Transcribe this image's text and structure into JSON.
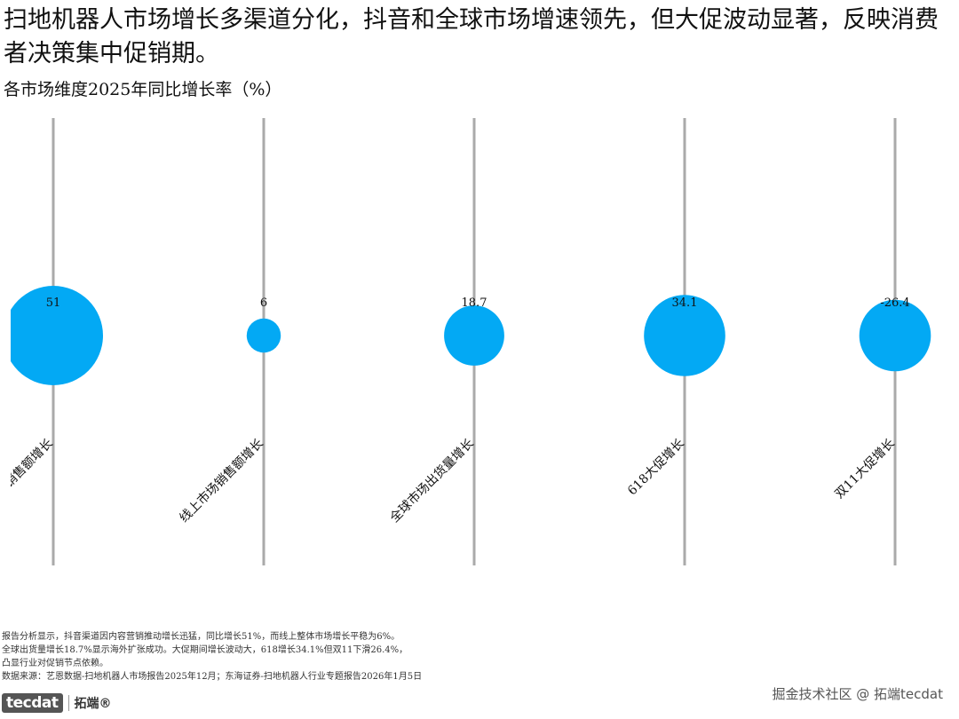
{
  "headline": "扫地机器人市场增长多渠道分化，抖音和全球市场增速领先，但大促波动显著，反映消费者决策集中促销期。",
  "chart_data": {
    "type": "scatter",
    "title": "各市场维度2025年同比增长率（%）",
    "categories": [
      "抖音销售额增长",
      "线上市场销售额增长",
      "全球市场出货量增长",
      "618大促增长",
      "双11大促增长"
    ],
    "values": [
      51,
      6,
      18.7,
      34.1,
      -26.4
    ],
    "value_labels": [
      "51",
      "6",
      "18.7",
      "34.1",
      "-26.4"
    ],
    "encoding": "bubble size = absolute value",
    "bubble_color": "#03A9F4",
    "stem_color": "#AAAAAA",
    "grid": false,
    "legend": "none"
  },
  "notes": [
    "报告分析显示，抖音渠道因内容营销推动增长迅猛，同比增长51%，而线上整体市场增长平稳为6%。",
    "全球出货量增长18.7%显示海外扩张成功。大促期间增长波动大，618增长34.1%但双11下滑26.4%，",
    "凸显行业对促销节点依赖。",
    "数据来源：艺恩数据-扫地机器人市场报告2025年12月；东海证券-扫地机器人行业专题报告2026年1月5日"
  ],
  "logo": {
    "mark": "tecdat",
    "text": "拓端®"
  },
  "watermark": "掘金技术社区 @ 拓端tecdat"
}
